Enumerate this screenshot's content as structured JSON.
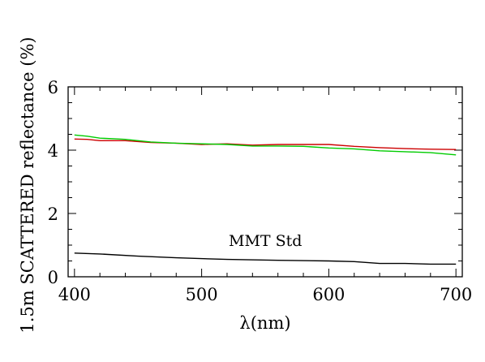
{
  "chart_data": {
    "type": "line",
    "title": "",
    "xlabel": "λ(nm)",
    "ylabel": "1.5m SCATTERED reflectance (%)",
    "xlim": [
      395,
      705
    ],
    "ylim": [
      0,
      6
    ],
    "xticks": [
      400,
      500,
      600,
      700
    ],
    "yticks": [
      0,
      2,
      4,
      6
    ],
    "grid": false,
    "annotation": "MMT Std",
    "series": [
      {
        "color": "#cc0000",
        "x": [
          400,
          410,
          420,
          440,
          460,
          480,
          500,
          520,
          540,
          560,
          580,
          600,
          620,
          640,
          660,
          680,
          700
        ],
        "y": [
          4.35,
          4.34,
          4.3,
          4.3,
          4.24,
          4.22,
          4.18,
          4.2,
          4.16,
          4.18,
          4.18,
          4.18,
          4.12,
          4.08,
          4.05,
          4.03,
          4.02
        ]
      },
      {
        "color": "#00cc00",
        "x": [
          400,
          410,
          420,
          440,
          460,
          480,
          500,
          520,
          540,
          560,
          580,
          600,
          620,
          640,
          660,
          680,
          700
        ],
        "y": [
          4.48,
          4.44,
          4.38,
          4.34,
          4.26,
          4.22,
          4.2,
          4.18,
          4.13,
          4.13,
          4.12,
          4.07,
          4.04,
          3.98,
          3.95,
          3.92,
          3.85
        ]
      },
      {
        "color": "#000000",
        "x": [
          400,
          420,
          450,
          480,
          520,
          560,
          600,
          620,
          640,
          660,
          680,
          700
        ],
        "y": [
          0.75,
          0.72,
          0.65,
          0.6,
          0.55,
          0.52,
          0.5,
          0.48,
          0.42,
          0.42,
          0.4,
          0.4
        ]
      }
    ]
  }
}
